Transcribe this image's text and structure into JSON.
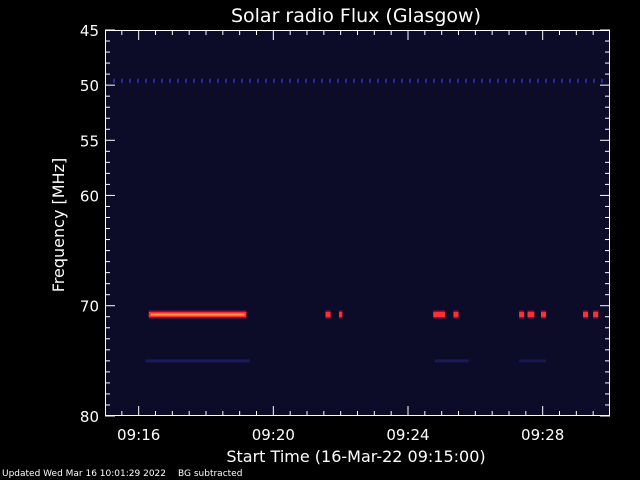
{
  "chart_data": {
    "type": "heatmap",
    "title": "Solar radio Flux (Glasgow)",
    "xlabel": "Start Time (16-Mar-22 09:15:00)",
    "ylabel": "Frequency [MHz]",
    "x_unit": "minutes after 09:15:00",
    "xlim": [
      0,
      15
    ],
    "ylim": [
      80,
      45
    ],
    "x_ticks": [
      {
        "value": 1,
        "label": "09:16"
      },
      {
        "value": 5,
        "label": "09:20"
      },
      {
        "value": 9,
        "label": "09:24"
      },
      {
        "value": 13,
        "label": "09:28"
      }
    ],
    "y_ticks": [
      {
        "value": 45,
        "label": "45"
      },
      {
        "value": 50,
        "label": "50"
      },
      {
        "value": 55,
        "label": "55"
      },
      {
        "value": 60,
        "label": "60"
      },
      {
        "value": 70,
        "label": "70"
      },
      {
        "value": 80,
        "label": "80"
      }
    ],
    "background_color": "#0c0c28",
    "colors": {
      "hot": "#ff3030",
      "core": "#ff9a40",
      "edge": "#7a1060",
      "faint": "#2a2aa0"
    },
    "emission": [
      {
        "t_start": 1.3,
        "t_end": 4.2,
        "freq": 70.8,
        "intensity": "strong"
      },
      {
        "t_start": 6.55,
        "t_end": 6.7,
        "freq": 70.8,
        "intensity": "medium"
      },
      {
        "t_start": 6.95,
        "t_end": 7.05,
        "freq": 70.8,
        "intensity": "medium"
      },
      {
        "t_start": 9.75,
        "t_end": 10.1,
        "freq": 70.8,
        "intensity": "medium"
      },
      {
        "t_start": 10.35,
        "t_end": 10.5,
        "freq": 70.8,
        "intensity": "medium"
      },
      {
        "t_start": 12.3,
        "t_end": 12.45,
        "freq": 70.8,
        "intensity": "medium"
      },
      {
        "t_start": 12.55,
        "t_end": 12.75,
        "freq": 70.8,
        "intensity": "medium"
      },
      {
        "t_start": 12.95,
        "t_end": 13.1,
        "freq": 70.8,
        "intensity": "medium"
      },
      {
        "t_start": 14.2,
        "t_end": 14.35,
        "freq": 70.8,
        "intensity": "medium"
      },
      {
        "t_start": 14.5,
        "t_end": 14.65,
        "freq": 70.8,
        "intensity": "medium"
      }
    ],
    "faint_band_freq": 49.6,
    "faint_band_2_freq": 75.0
  },
  "footer": {
    "updated": "Updated Wed Mar 16 10:01:29 2022",
    "note": "BG subtracted"
  }
}
